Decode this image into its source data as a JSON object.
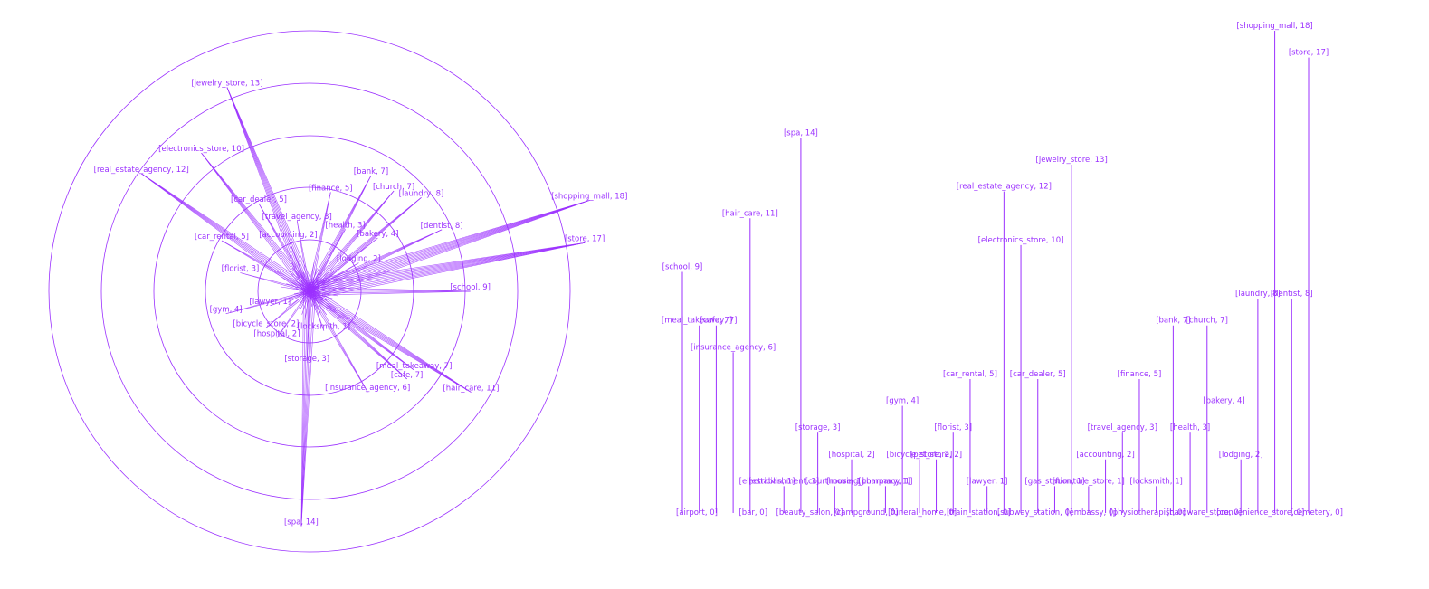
{
  "colors": {
    "accent": "#9b30ff",
    "bg": "#ffffff"
  },
  "chart_data": [
    {
      "type": "radial",
      "rings": [
        1,
        2,
        3,
        4,
        5
      ],
      "grid": true,
      "points": [
        {
          "name": "shopping_mall",
          "value": 18,
          "label": "[shopping_mall, 18]"
        },
        {
          "name": "store",
          "value": 17,
          "label": "[store, 17]"
        },
        {
          "name": "school",
          "value": 9,
          "label": "[school, 9]"
        },
        {
          "name": "laundry",
          "value": 8,
          "label": "[laundry, 8]"
        },
        {
          "name": "dentist",
          "value": 8,
          "label": "[dentist, 8]"
        },
        {
          "name": "bank",
          "value": 7,
          "label": "[bank, 7]"
        },
        {
          "name": "church",
          "value": 7,
          "label": "[church, 7]"
        },
        {
          "name": "finance",
          "value": 5,
          "label": "[finance, 5]"
        },
        {
          "name": "bakery",
          "value": 4,
          "label": "[bakery, 4]"
        },
        {
          "name": "travel_agency",
          "value": 3,
          "label": "[travel_agency, 3]"
        },
        {
          "name": "health",
          "value": 3,
          "label": "[health, 3]"
        },
        {
          "name": "accounting",
          "value": 2,
          "label": "[accounting, 2]"
        },
        {
          "name": "lodging",
          "value": 2,
          "label": "[lodging, 2]"
        },
        {
          "name": "jewelry_store",
          "value": 13,
          "label": "[jewelry_store, 13]"
        },
        {
          "name": "electronics_store",
          "value": 10,
          "label": "[electronics_store, 10]"
        },
        {
          "name": "real_estate_agency",
          "value": 12,
          "label": "[real_estate_agency, 12]"
        },
        {
          "name": "car_dealer",
          "value": 5,
          "label": "[car_dealer, 5]"
        },
        {
          "name": "car_rental",
          "value": 5,
          "label": "[car_rental, 5]"
        },
        {
          "name": "florist",
          "value": 3,
          "label": "[florist, 3]"
        },
        {
          "name": "gym",
          "value": 4,
          "label": "[gym, 4]"
        },
        {
          "name": "hospital",
          "value": 2,
          "label": "[hospital, 2]"
        },
        {
          "name": "storage",
          "value": 3,
          "label": "[storage, 3]"
        },
        {
          "name": "spa",
          "value": 14,
          "label": "[spa, 14]"
        },
        {
          "name": "cafe",
          "value": 7,
          "label": "[cafe, 7]"
        },
        {
          "name": "meal_takeaway",
          "value": 7,
          "label": "[meal_takeaway, 7]"
        },
        {
          "name": "insurance_agency",
          "value": 6,
          "label": "[insurance_agency, 6]"
        },
        {
          "name": "hair_care",
          "value": 11,
          "label": "[hair_care, 11]"
        },
        {
          "name": "lawyer",
          "value": 1,
          "label": "[lawyer, 1]"
        },
        {
          "name": "locksmith",
          "value": 1,
          "label": "[locksmith, 1]"
        },
        {
          "name": "bicycle_store",
          "value": 2,
          "label": "[bicycle_store, 2]"
        }
      ]
    },
    {
      "type": "lollipop",
      "bars": [
        {
          "label": "[school, 9]",
          "value": 9
        },
        {
          "label": "[meal_takeaway, 7]",
          "value": 7
        },
        {
          "label": "[cafe, 7]",
          "value": 7
        },
        {
          "label": "[insurance_agency, 6]",
          "value": 6
        },
        {
          "label": "[hair_care, 11]",
          "value": 11
        },
        {
          "label": "[electrician, 1]",
          "value": 1
        },
        {
          "label": "[establishment, 1]",
          "value": 1
        },
        {
          "label": "[spa, 14]",
          "value": 14
        },
        {
          "label": "[storage, 3]",
          "value": 3
        },
        {
          "label": "[courthouse, 1]",
          "value": 1
        },
        {
          "label": "[hospital, 2]",
          "value": 2
        },
        {
          "label": "[moving_company, 1]",
          "value": 1
        },
        {
          "label": "[pharmacy, 1]",
          "value": 1
        },
        {
          "label": "[gym, 4]",
          "value": 4
        },
        {
          "label": "[bicycle_store, 2]",
          "value": 2
        },
        {
          "label": "[pet_store, 2]",
          "value": 2
        },
        {
          "label": "[florist, 3]",
          "value": 3
        },
        {
          "label": "[car_rental, 5]",
          "value": 5
        },
        {
          "label": "[lawyer, 1]",
          "value": 1
        },
        {
          "label": "[real_estate_agency, 12]",
          "value": 12
        },
        {
          "label": "[electronics_store, 10]",
          "value": 10
        },
        {
          "label": "[car_dealer, 5]",
          "value": 5
        },
        {
          "label": "[gas_station, 1]",
          "value": 1
        },
        {
          "label": "[jewelry_store, 13]",
          "value": 13
        },
        {
          "label": "[furniture_store, 1]",
          "value": 1
        },
        {
          "label": "[accounting, 2]",
          "value": 2
        },
        {
          "label": "[travel_agency, 3]",
          "value": 3
        },
        {
          "label": "[finance, 5]",
          "value": 5
        },
        {
          "label": "[locksmith, 1]",
          "value": 1
        },
        {
          "label": "[bank, 7]",
          "value": 7
        },
        {
          "label": "[health, 3]",
          "value": 3
        },
        {
          "label": "[church, 7]",
          "value": 7
        },
        {
          "label": "[bakery, 4]",
          "value": 4
        },
        {
          "label": "[lodging, 2]",
          "value": 2
        },
        {
          "label": "[laundry, 8]",
          "value": 8
        },
        {
          "label": "[shopping_mall, 18]",
          "value": 18
        },
        {
          "label": "[dentist, 8]",
          "value": 8
        },
        {
          "label": "[store, 17]",
          "value": 17
        }
      ],
      "baseline_labels": [
        "[airport, 0]",
        "[bar, 0]",
        "[beauty_salon, 0]",
        "[campground, 0]",
        "[funeral_home, 0]",
        "[train_station, 0]",
        "[subway_station, 0]",
        "[embassy, 0]",
        "[physiotherapist, 0]",
        "[hardware_store, 0]",
        "[convenience_store, 0]",
        "[cemetery, 0]"
      ]
    }
  ]
}
